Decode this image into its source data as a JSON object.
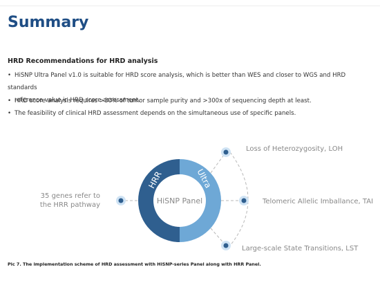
{
  "header": {
    "title": "Summary"
  },
  "section": {
    "heading": "HRD Recommendations for HRD analysis",
    "bullets": [
      [
        "HiSNP Ultra Panel v1.0 is suitable for HRD score analysis, which is better than WES and closer to WGS and HRD standards",
        "reference value in HRD score assessment."
      ],
      [
        "HRD score analysis requires >30% of tumor sample purity and >300x of sequencing depth at least."
      ],
      [
        "The feasibility of clinical HRD assessment depends on the simultaneous use of specific panels."
      ]
    ]
  },
  "diagram": {
    "left_segment": "HRR",
    "right_segment": "Ultra",
    "center": "HiSNP Panel",
    "left_label": [
      "35 genes refer to",
      "the HRR pathway"
    ],
    "right_labels": [
      "Loss of Heterozygosity, LOH",
      "Telomeric Allelic Imballance, TAI",
      "Large-scale State Transitions, LST"
    ]
  },
  "caption": "Pic 7. The implementation scheme of HRD assessment with HiSNP-series Panel along with HRR Panel."
}
